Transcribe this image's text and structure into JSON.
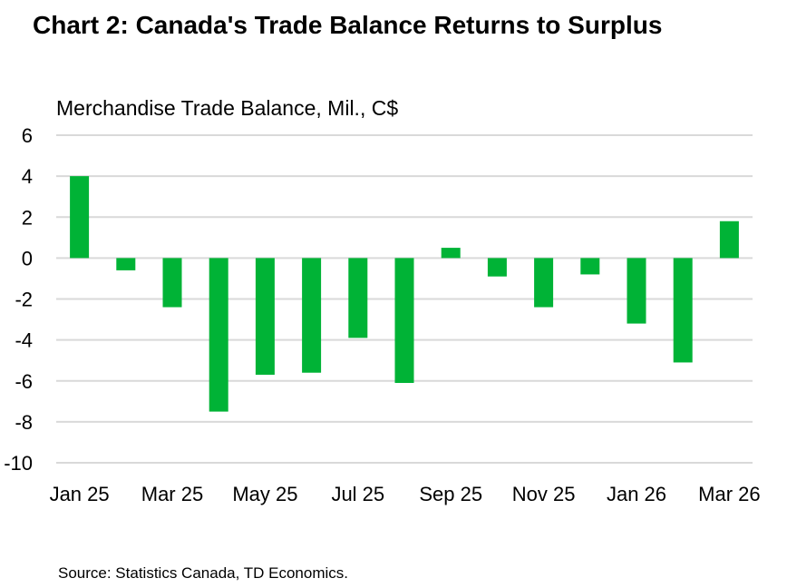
{
  "title": "Chart 2: Canada's Trade Balance Returns to Surplus",
  "source": "Source: Statistics Canada, TD Economics.",
  "chart_data": {
    "type": "bar",
    "ylabel": "Merchandise Trade Balance, Mil., C$",
    "ylim": [
      -10,
      6
    ],
    "yticks": [
      "6",
      "4",
      "2",
      "0",
      "-2",
      "-4",
      "-6",
      "-8",
      "-10"
    ],
    "ytick_values": [
      6,
      4,
      2,
      0,
      -2,
      -4,
      -6,
      -8,
      -10
    ],
    "categories": [
      "Jan 25",
      "Feb 25",
      "Mar 25",
      "Apr 25",
      "May 25",
      "Jun 25",
      "Jul 25",
      "Aug 25",
      "Sep 25",
      "Oct 25",
      "Nov 25",
      "Dec 25",
      "Jan 26",
      "Feb 26",
      "Mar 26"
    ],
    "xtick_labels": [
      "Jan 25",
      "Mar 25",
      "May 25",
      "Jul 25",
      "Sep 25",
      "Nov 25",
      "Jan 26",
      "Mar 26"
    ],
    "values": [
      4.0,
      -0.6,
      -2.4,
      -7.5,
      -5.7,
      -5.6,
      -3.9,
      -6.1,
      0.5,
      -0.9,
      -2.4,
      -0.8,
      -3.2,
      -5.1,
      1.8
    ],
    "grid": true,
    "bar_color": "#00b336",
    "grid_color": "#d9d9d9"
  }
}
